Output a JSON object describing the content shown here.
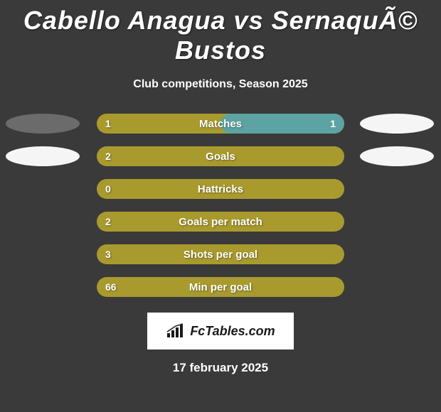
{
  "title": "Cabello Anagua vs SernaquÃ© Bustos",
  "subtitle": "Club competitions, Season 2025",
  "date": "17 february 2025",
  "logo_text": "FcTables.com",
  "colors": {
    "bar_olive": "#a99a2e",
    "bar_teal": "#5ea3a3",
    "ellipse_white": "#f5f5f5",
    "ellipse_gray": "#6b6b6b",
    "ellipse_dark": "#3a3a3a"
  },
  "rows": [
    {
      "label": "Matches",
      "left_value": "1",
      "right_value": "1",
      "bar_color": "#a99a2e",
      "overlay_color": "#5ea3a3",
      "overlay_width": 0.5,
      "left_ellipse": "#6b6b6b",
      "right_ellipse": "#f5f5f5",
      "show_left_ellipse": true,
      "show_right_ellipse": true
    },
    {
      "label": "Goals",
      "left_value": "2",
      "right_value": "",
      "bar_color": "#a99a2e",
      "overlay_color": null,
      "overlay_width": 0,
      "left_ellipse": "#f5f5f5",
      "right_ellipse": "#f5f5f5",
      "show_left_ellipse": true,
      "show_right_ellipse": true
    },
    {
      "label": "Hattricks",
      "left_value": "0",
      "right_value": "",
      "bar_color": "#a99a2e",
      "overlay_color": null,
      "overlay_width": 0,
      "left_ellipse": null,
      "right_ellipse": null,
      "show_left_ellipse": false,
      "show_right_ellipse": false
    },
    {
      "label": "Goals per match",
      "left_value": "2",
      "right_value": "",
      "bar_color": "#a99a2e",
      "overlay_color": null,
      "overlay_width": 0,
      "left_ellipse": null,
      "right_ellipse": null,
      "show_left_ellipse": false,
      "show_right_ellipse": false
    },
    {
      "label": "Shots per goal",
      "left_value": "3",
      "right_value": "",
      "bar_color": "#a99a2e",
      "overlay_color": null,
      "overlay_width": 0,
      "left_ellipse": null,
      "right_ellipse": null,
      "show_left_ellipse": false,
      "show_right_ellipse": false
    },
    {
      "label": "Min per goal",
      "left_value": "66",
      "right_value": "",
      "bar_color": "#a99a2e",
      "overlay_color": null,
      "overlay_width": 0,
      "left_ellipse": null,
      "right_ellipse": null,
      "show_left_ellipse": false,
      "show_right_ellipse": false
    }
  ]
}
